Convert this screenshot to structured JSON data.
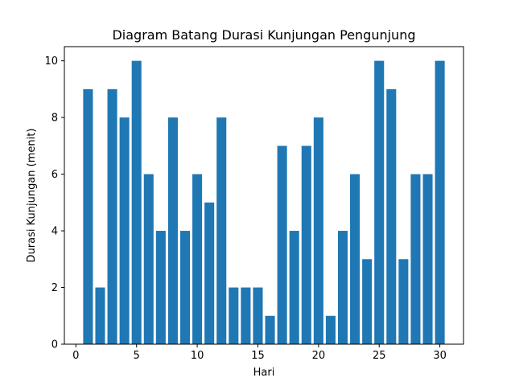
{
  "chart_data": {
    "type": "bar",
    "title": "Diagram Batang Durasi Kunjungan Pengunjung",
    "xlabel": "Hari",
    "ylabel": "Durasi Kunjungan (menit)",
    "x": [
      1,
      2,
      3,
      4,
      5,
      6,
      7,
      8,
      9,
      10,
      11,
      12,
      13,
      14,
      15,
      16,
      17,
      18,
      19,
      20,
      21,
      22,
      23,
      24,
      25,
      26,
      27,
      28,
      29,
      30
    ],
    "values": [
      9,
      2,
      9,
      8,
      10,
      6,
      4,
      8,
      4,
      6,
      5,
      8,
      2,
      2,
      2,
      1,
      7,
      4,
      7,
      8,
      1,
      4,
      6,
      3,
      10,
      9,
      3,
      6,
      6,
      10
    ],
    "xticks": [
      0,
      5,
      10,
      15,
      20,
      25,
      30
    ],
    "yticks": [
      0,
      2,
      4,
      6,
      8,
      10
    ],
    "xlim": [
      -0.95,
      31.95
    ],
    "ylim": [
      0,
      10.5
    ],
    "bar_color": "#1f77b4",
    "grid": false,
    "legend": "none"
  }
}
